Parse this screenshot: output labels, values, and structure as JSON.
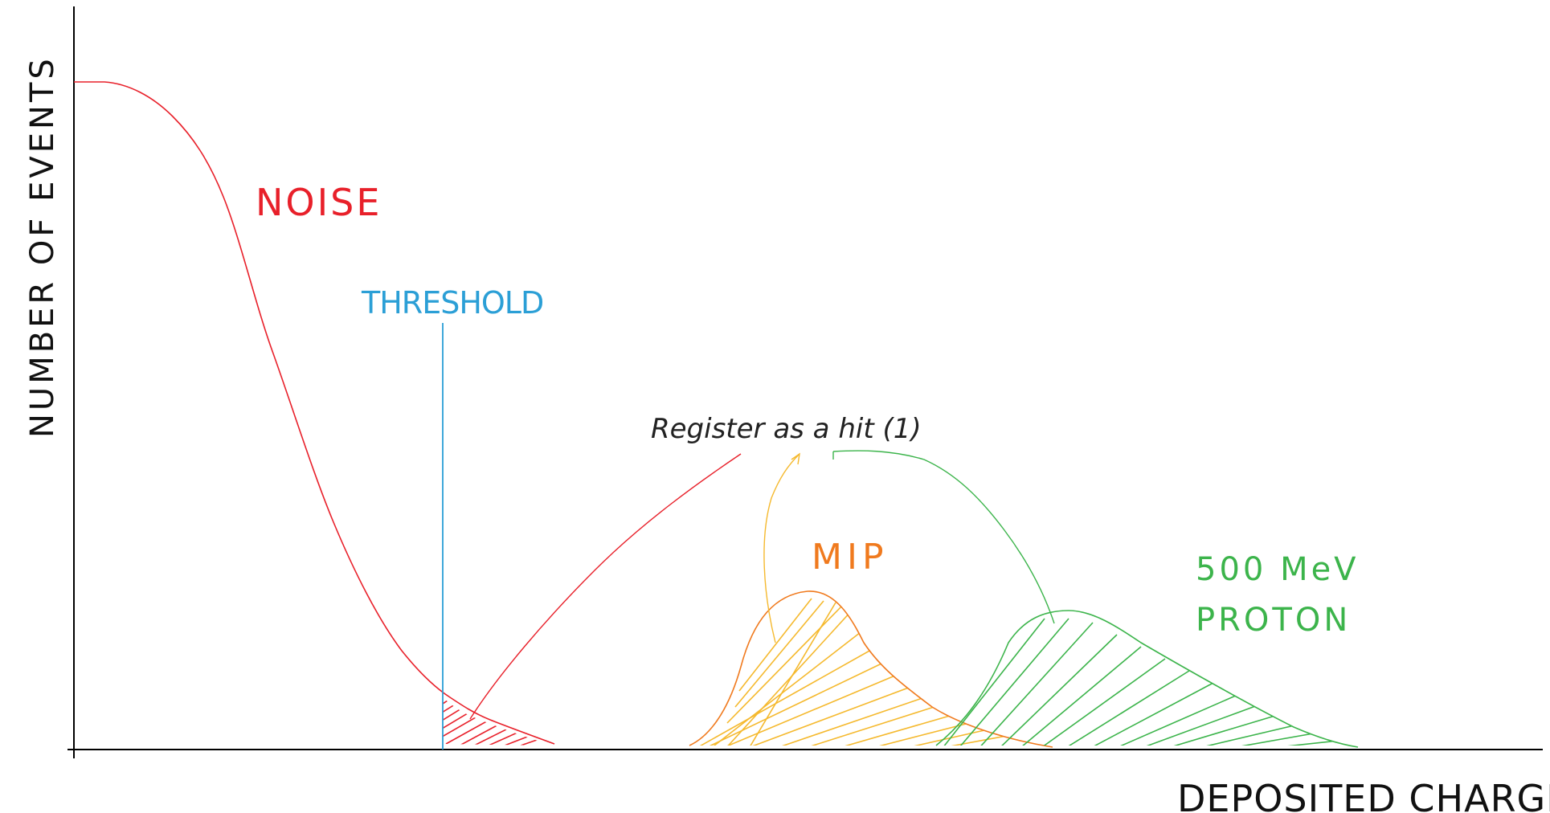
{
  "axes": {
    "x_label": "DEPOSITED CHARGE",
    "y_label": "NUMBER OF EVENTS"
  },
  "labels": {
    "noise": "NOISE",
    "threshold": "THRESHOLD",
    "register_hit": "Register as a hit (1)",
    "mip": "MIP",
    "proton_line1": "500 MeV",
    "proton_line2": "PROTON"
  },
  "colors": {
    "axis": "#000000",
    "noise": "#e8202a",
    "threshold": "#2b9fd6",
    "annotation": "#222222",
    "mip_curve": "#f07a1e",
    "mip_hatch": "#f5b92e",
    "proton": "#3cb44b"
  }
}
